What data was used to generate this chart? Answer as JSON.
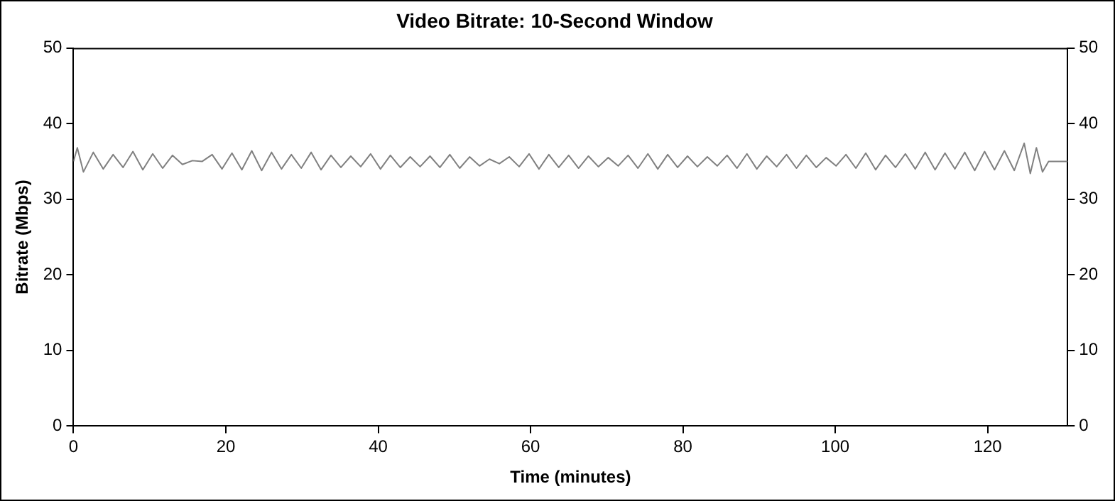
{
  "chart_data": {
    "type": "line",
    "title": "Video Bitrate: 10-Second Window",
    "xlabel": "Time (minutes)",
    "ylabel": "Bitrate (Mbps)",
    "x": [
      0,
      0.5,
      1.3,
      2.6,
      3.9,
      5.2,
      6.5,
      7.8,
      9.1,
      10.4,
      11.7,
      13,
      14.3,
      15.6,
      16.9,
      18.2,
      19.5,
      20.8,
      22.1,
      23.4,
      24.7,
      26,
      27.3,
      28.6,
      29.9,
      31.2,
      32.5,
      33.8,
      35.1,
      36.4,
      37.7,
      39,
      40.3,
      41.6,
      42.9,
      44.2,
      45.5,
      46.8,
      48.1,
      49.4,
      50.7,
      52,
      53.3,
      54.6,
      55.9,
      57.2,
      58.5,
      59.8,
      61.1,
      62.4,
      63.7,
      65,
      66.3,
      67.6,
      68.9,
      70.2,
      71.5,
      72.8,
      74.1,
      75.4,
      76.7,
      78,
      79.3,
      80.6,
      81.9,
      83.2,
      84.5,
      85.8,
      87.1,
      88.4,
      89.7,
      91,
      92.3,
      93.6,
      94.9,
      96.2,
      97.5,
      98.8,
      100.1,
      101.4,
      102.7,
      104,
      105.3,
      106.6,
      107.9,
      109.2,
      110.5,
      111.8,
      113.1,
      114.4,
      115.7,
      117,
      118.3,
      119.6,
      120.9,
      122.2,
      123.5,
      124.8,
      125.6,
      126.4,
      127.2,
      128,
      130.5
    ],
    "series": [
      {
        "color": "#808080",
        "values": [
          35,
          36.8,
          33.6,
          36.2,
          34,
          35.9,
          34.2,
          36.3,
          33.9,
          36,
          34.1,
          35.8,
          34.6,
          35.1,
          35,
          35.9,
          34,
          36.1,
          33.9,
          36.4,
          33.8,
          36.2,
          34,
          35.9,
          34.1,
          36.2,
          33.9,
          35.8,
          34.2,
          35.7,
          34.3,
          36,
          34,
          35.8,
          34.2,
          35.6,
          34.3,
          35.7,
          34.2,
          35.9,
          34.1,
          35.6,
          34.4,
          35.3,
          34.7,
          35.6,
          34.3,
          36,
          34,
          35.9,
          34.2,
          35.8,
          34.1,
          35.7,
          34.3,
          35.5,
          34.4,
          35.8,
          34.1,
          36,
          34,
          35.9,
          34.2,
          35.7,
          34.3,
          35.6,
          34.4,
          35.8,
          34.1,
          36,
          34,
          35.7,
          34.3,
          35.9,
          34.1,
          35.8,
          34.2,
          35.5,
          34.4,
          35.9,
          34.1,
          36.1,
          33.9,
          35.8,
          34.2,
          36,
          34,
          36.2,
          33.9,
          36.1,
          34,
          36.2,
          33.8,
          36.3,
          33.9,
          36.4,
          33.8,
          37.4,
          33.4,
          36.8,
          33.6,
          35,
          35
        ]
      }
    ],
    "xlim": [
      0,
      130.5
    ],
    "xticks": [
      0,
      20,
      40,
      60,
      80,
      100,
      120
    ],
    "ylim": [
      0,
      50
    ],
    "yticks": [
      0,
      10,
      20,
      30,
      40,
      50
    ],
    "y2lim": [
      0,
      50
    ],
    "y2ticks": [
      0,
      10,
      20,
      30,
      40,
      50
    ],
    "grid": false,
    "legend": false,
    "marker": "none",
    "line_style": "solid"
  }
}
